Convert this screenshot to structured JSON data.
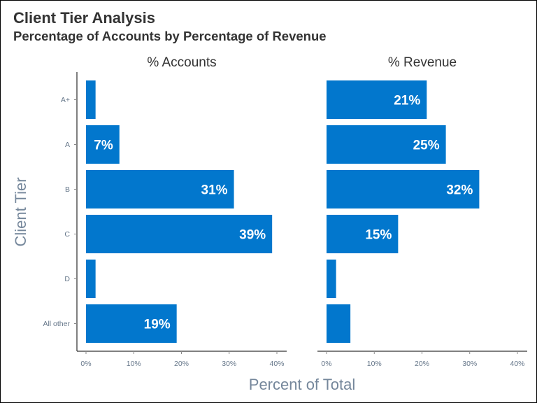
{
  "chart_data": {
    "type": "bar",
    "orientation": "horizontal",
    "title": "Client Tier Analysis",
    "subtitle": "Percentage of Accounts by Percentage of Revenue",
    "ylabel": "Client Tier",
    "xlabel": "Percent of Total",
    "categories": [
      "A+",
      "A",
      "B",
      "C",
      "D",
      "All other"
    ],
    "xlim": [
      0,
      40
    ],
    "x_ticks": [
      "0%",
      "10%",
      "20%",
      "30%",
      "40%"
    ],
    "bar_color": "#0277cd",
    "grid": false,
    "facets": [
      {
        "name": "% Accounts",
        "values": [
          2,
          7,
          31,
          39,
          2,
          19
        ],
        "labels": [
          "",
          "7%",
          "31%",
          "39%",
          "",
          "19%"
        ]
      },
      {
        "name": "% Revenue",
        "values": [
          21,
          25,
          32,
          15,
          2,
          5
        ],
        "labels": [
          "21%",
          "25%",
          "32%",
          "15%",
          "",
          ""
        ]
      }
    ]
  }
}
